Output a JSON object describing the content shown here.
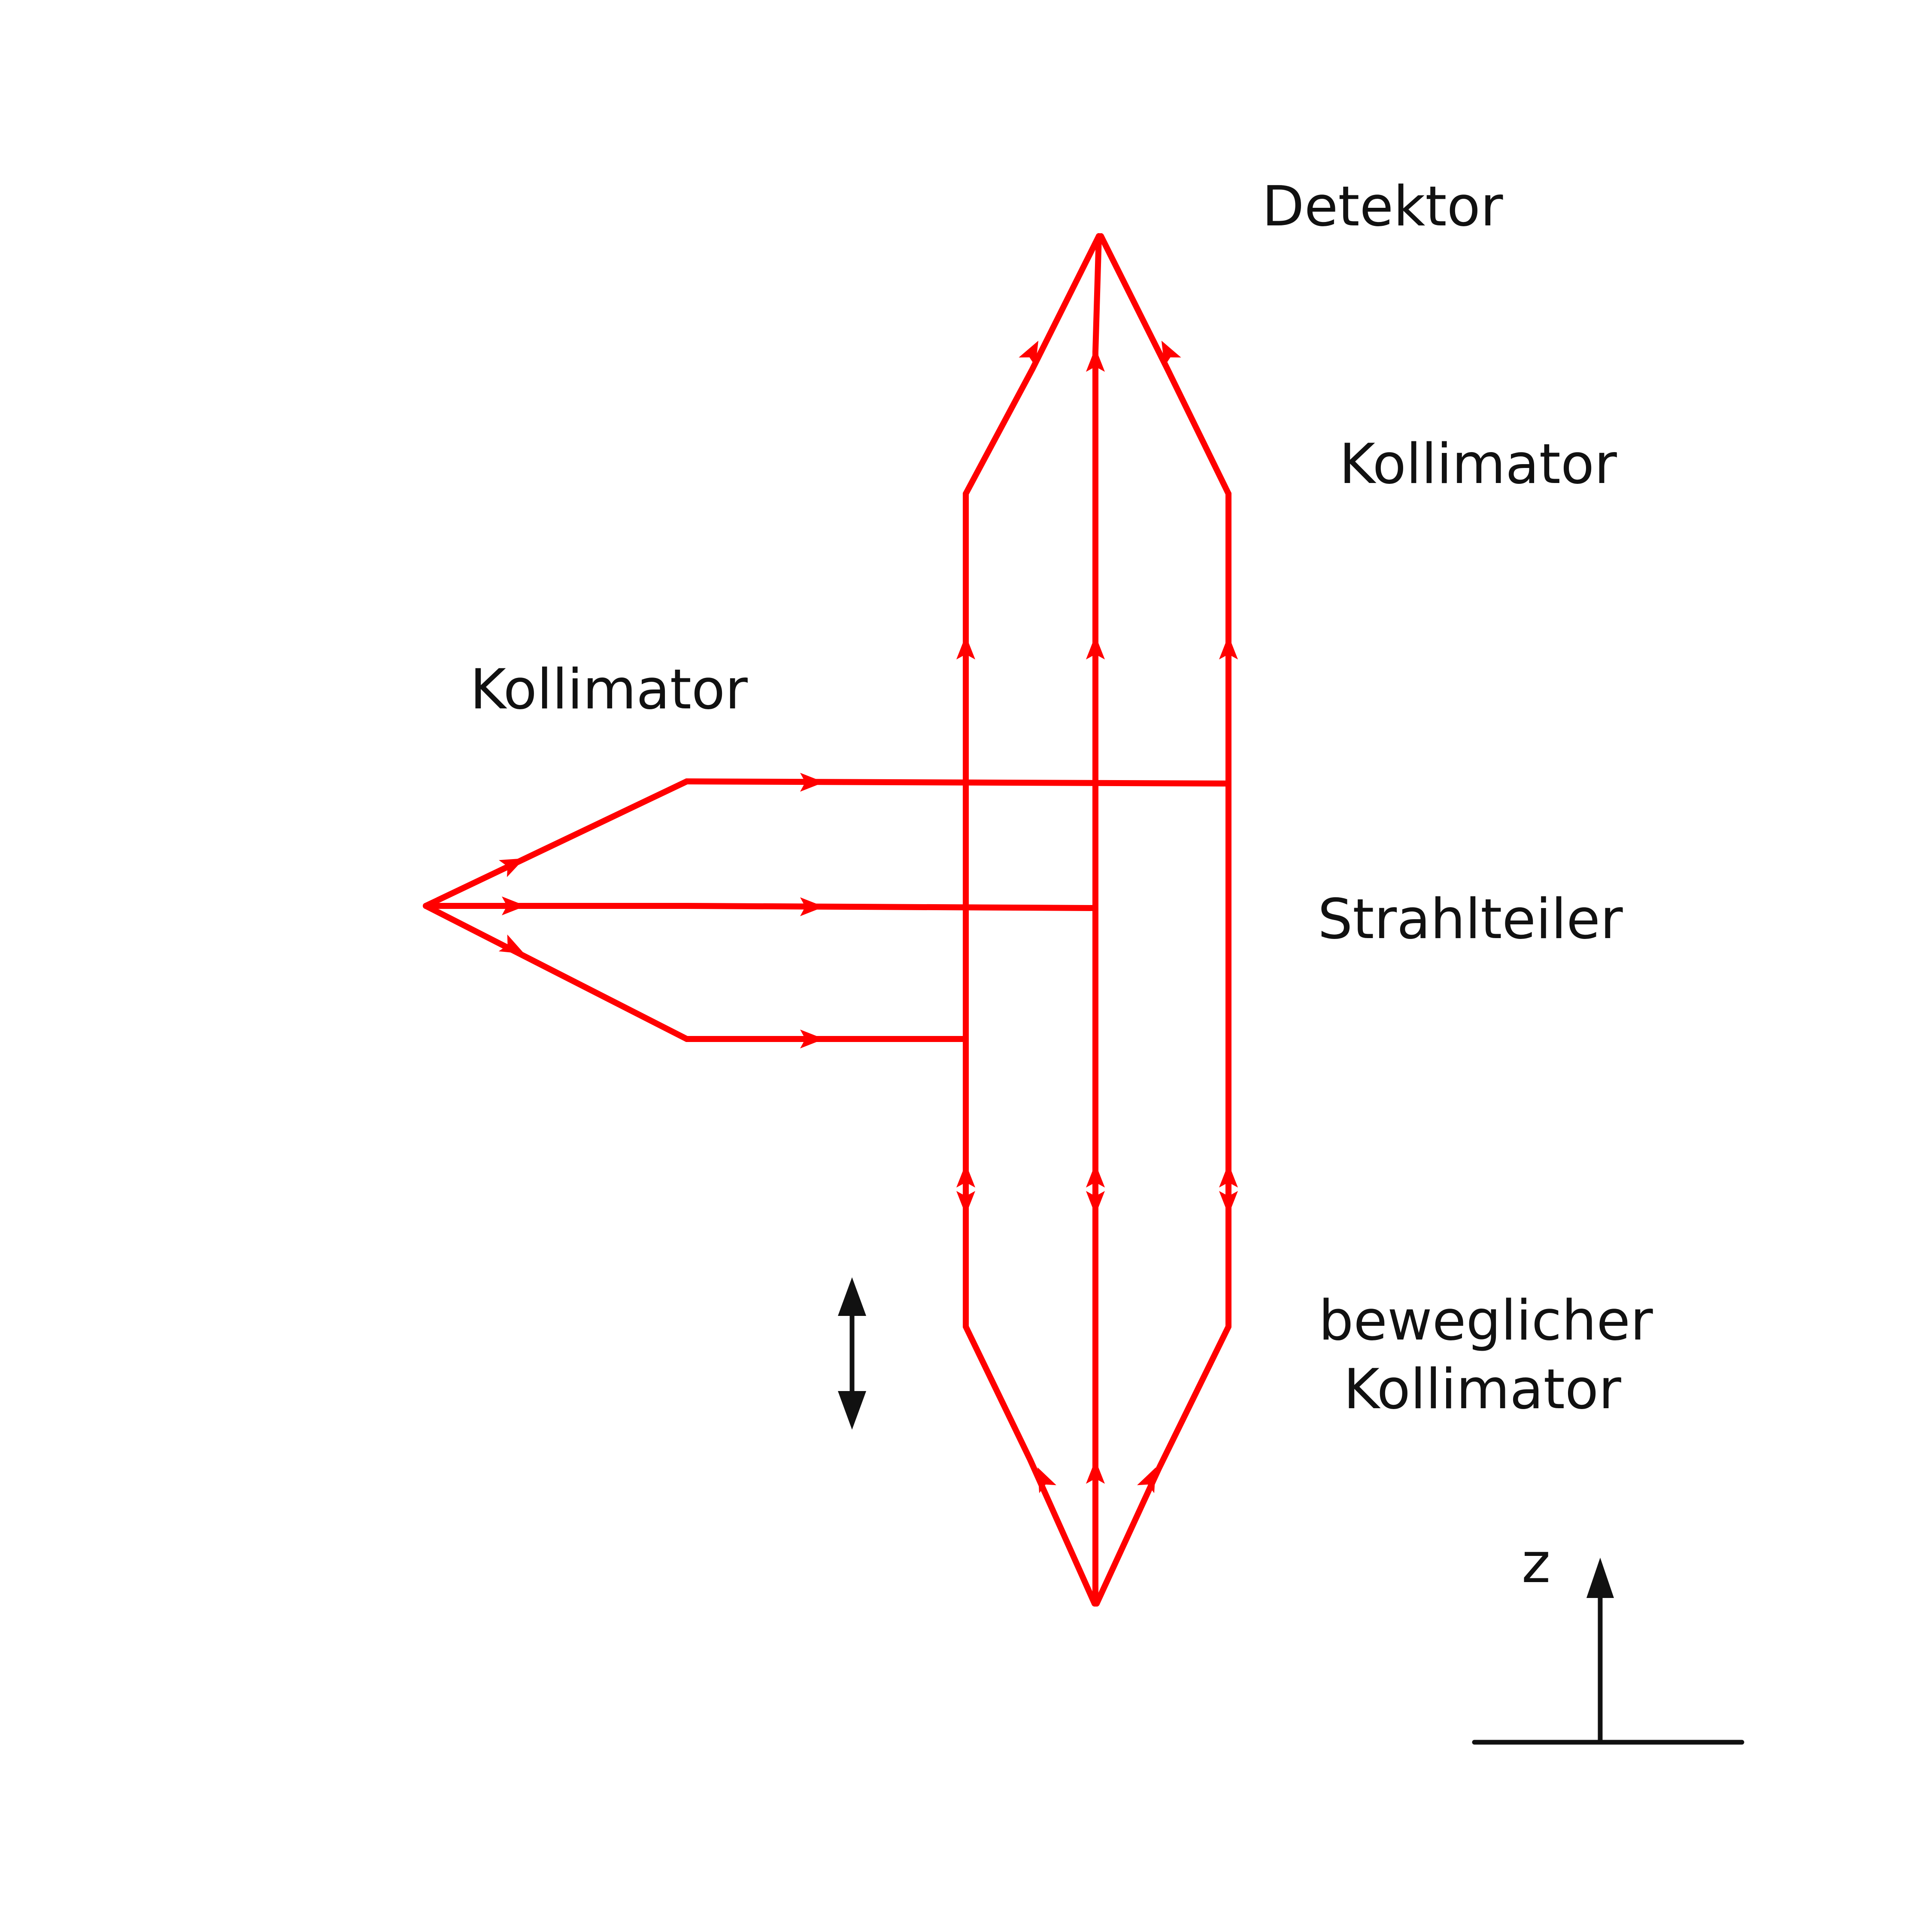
{
  "labels": {
    "detector": "Detektor",
    "collimator_top": "Kollimator",
    "collimator_left": "Kollimator",
    "beam_splitter": "Strahlteiler",
    "movable_collimator_line1": "beweglicher",
    "movable_collimator_line2": "Kollimator",
    "axis": "z"
  },
  "colors": {
    "beam": "#ff0000",
    "ink": "#111111",
    "background": "#ffffff"
  },
  "icons": {
    "movement": "double-headed-arrow-icon",
    "axis": "up-arrow-icon"
  }
}
